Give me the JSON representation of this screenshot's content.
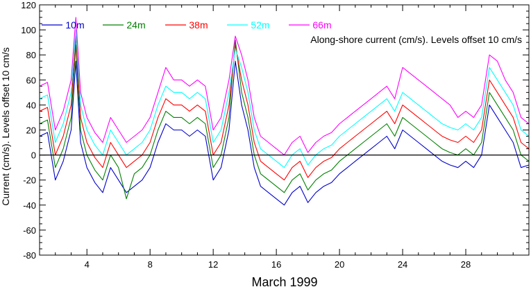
{
  "chart_data": {
    "type": "line",
    "title": "",
    "annotation": "Along-shore current (cm/s). Levels offset 10 cm/s",
    "xlabel": "March 1999",
    "ylabel": "Current (cm/s). Levels offset 10 cm/s",
    "xlim": [
      1,
      32
    ],
    "ylim": [
      -80,
      120
    ],
    "x_ticks": [
      4,
      8,
      12,
      16,
      20,
      24,
      28
    ],
    "y_ticks": [
      -80,
      -60,
      -40,
      -20,
      0,
      20,
      40,
      60,
      80,
      100,
      120
    ],
    "zero_line": true,
    "grid": false,
    "legend_position": "top",
    "x": [
      1.0,
      1.5,
      2.0,
      2.5,
      3.0,
      3.3,
      3.6,
      4.0,
      4.5,
      5.0,
      5.5,
      6.0,
      6.5,
      7.0,
      7.5,
      8.0,
      8.5,
      9.0,
      9.5,
      10.0,
      10.5,
      11.0,
      11.5,
      12.0,
      12.5,
      13.0,
      13.4,
      13.8,
      14.2,
      14.6,
      15.0,
      15.5,
      16.0,
      16.5,
      17.0,
      17.5,
      18.0,
      18.5,
      19.0,
      19.5,
      20.0,
      20.5,
      21.0,
      21.5,
      22.0,
      22.5,
      23.0,
      23.5,
      24.0,
      24.5,
      25.0,
      25.5,
      26.0,
      26.5,
      27.0,
      27.5,
      28.0,
      28.5,
      29.0,
      29.5,
      30.0,
      30.5,
      31.0,
      31.5,
      32.0
    ],
    "series": [
      {
        "name": "10m",
        "color": "#0000cc",
        "values": [
          15,
          18,
          -20,
          -5,
          20,
          75,
          10,
          -10,
          -22,
          -30,
          -10,
          -20,
          -30,
          -25,
          -20,
          -10,
          10,
          25,
          20,
          20,
          15,
          20,
          15,
          -20,
          -10,
          20,
          75,
          40,
          20,
          -10,
          -25,
          -30,
          -35,
          -40,
          -30,
          -25,
          -38,
          -30,
          -25,
          -22,
          -15,
          -10,
          -5,
          0,
          5,
          10,
          15,
          5,
          20,
          15,
          10,
          5,
          0,
          -5,
          -8,
          -10,
          -5,
          -10,
          0,
          40,
          30,
          20,
          10,
          -10,
          -8
        ]
      },
      {
        "name": "24m",
        "color": "#008000",
        "values": [
          25,
          28,
          -10,
          5,
          30,
          88,
          20,
          0,
          -12,
          -20,
          0,
          -10,
          -35,
          -15,
          -10,
          0,
          20,
          35,
          30,
          30,
          25,
          30,
          25,
          -10,
          0,
          30,
          92,
          50,
          30,
          0,
          -15,
          -20,
          -25,
          -30,
          -20,
          -15,
          -28,
          -20,
          -15,
          -12,
          -5,
          0,
          5,
          10,
          15,
          20,
          25,
          15,
          30,
          25,
          20,
          15,
          10,
          5,
          2,
          0,
          5,
          0,
          10,
          50,
          40,
          30,
          20,
          0,
          -5
        ]
      },
      {
        "name": "38m",
        "color": "#ff0000",
        "values": [
          35,
          38,
          0,
          15,
          40,
          95,
          30,
          10,
          -2,
          -10,
          10,
          0,
          -10,
          -5,
          0,
          10,
          30,
          45,
          40,
          40,
          35,
          40,
          35,
          0,
          10,
          40,
          88,
          60,
          40,
          10,
          -5,
          -10,
          -15,
          -20,
          -10,
          -5,
          -18,
          -10,
          -5,
          -2,
          5,
          10,
          15,
          20,
          25,
          30,
          35,
          25,
          40,
          35,
          30,
          25,
          20,
          15,
          12,
          10,
          15,
          10,
          20,
          60,
          50,
          40,
          30,
          10,
          5
        ]
      },
      {
        "name": "52m",
        "color": "#00ffff",
        "values": [
          45,
          48,
          10,
          25,
          50,
          100,
          40,
          20,
          8,
          0,
          20,
          10,
          0,
          5,
          10,
          20,
          40,
          55,
          50,
          50,
          45,
          50,
          45,
          10,
          20,
          50,
          85,
          70,
          50,
          20,
          5,
          0,
          -5,
          -10,
          0,
          5,
          -8,
          0,
          5,
          8,
          15,
          20,
          25,
          30,
          35,
          40,
          45,
          35,
          50,
          45,
          40,
          35,
          30,
          25,
          22,
          20,
          25,
          20,
          30,
          70,
          60,
          50,
          40,
          20,
          15
        ]
      },
      {
        "name": "66m",
        "color": "#ff00ff",
        "values": [
          55,
          58,
          20,
          35,
          60,
          110,
          50,
          30,
          18,
          10,
          30,
          20,
          10,
          15,
          20,
          30,
          50,
          70,
          60,
          60,
          55,
          60,
          55,
          20,
          30,
          60,
          95,
          80,
          60,
          30,
          15,
          10,
          5,
          0,
          10,
          15,
          2,
          10,
          15,
          18,
          25,
          30,
          35,
          40,
          45,
          50,
          55,
          45,
          70,
          65,
          60,
          55,
          50,
          45,
          40,
          30,
          35,
          30,
          40,
          80,
          75,
          60,
          50,
          30,
          25
        ]
      }
    ]
  }
}
